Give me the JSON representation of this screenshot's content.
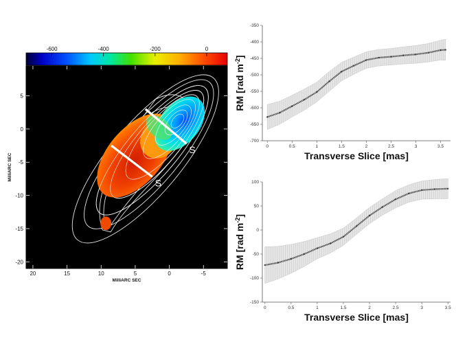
{
  "chart_data": [
    {
      "type": "heatmap",
      "colorbar": {
        "ticks": [
          -600,
          -400,
          -200,
          0
        ],
        "range": [
          -700,
          80
        ]
      },
      "xlabel": "MilliARC SEC",
      "ylabel": "MilliARC SEC",
      "xticks": [
        20,
        15,
        10,
        5,
        0,
        -5
      ],
      "yticks": [
        5,
        0,
        -5,
        -10,
        -15,
        -20
      ],
      "xlim": [
        21,
        -8.5
      ],
      "ylim": [
        -21,
        9.5
      ],
      "slice_label": "S",
      "slices": [
        {
          "name": "S",
          "from": [
            8.5,
            -2.5
          ],
          "to": [
            2.5,
            -7.2
          ]
        },
        {
          "name": "S",
          "from": [
            3.5,
            3.0
          ],
          "to": [
            -2.5,
            -2.2
          ]
        }
      ],
      "features": {
        "red_knot_center": [
          9.3,
          -14.2
        ],
        "red_region_center": [
          5.0,
          -4.0
        ],
        "cyan_core_center": [
          -1.5,
          0.8
        ]
      },
      "grid": false
    },
    {
      "type": "line",
      "xlabel": "Transverse Slice [mas]",
      "ylabel": "RM [rad m",
      "ylabel_sup": "-2",
      "ylabel_close": "]",
      "xlim": [
        -0.1,
        3.7
      ],
      "ylim": [
        -700,
        -350
      ],
      "xticks": [
        0,
        0.5,
        1,
        1.5,
        2,
        2.5,
        3,
        3.5
      ],
      "yticks": [
        -350,
        -400,
        -450,
        -500,
        -550,
        -600,
        -650,
        -700
      ],
      "x": [
        0,
        0.25,
        0.5,
        0.75,
        1.0,
        1.25,
        1.5,
        1.75,
        2.0,
        2.25,
        2.5,
        2.75,
        3.0,
        3.25,
        3.5,
        3.6
      ],
      "y": [
        -628,
        -615,
        -595,
        -575,
        -552,
        -520,
        -490,
        -472,
        -455,
        -448,
        -445,
        -441,
        -438,
        -433,
        -425,
        -424
      ],
      "err": [
        38,
        35,
        33,
        32,
        30,
        30,
        28,
        26,
        25,
        25,
        25,
        26,
        27,
        28,
        30,
        32
      ],
      "grid": false
    },
    {
      "type": "line",
      "xlabel": "Transverse Slice [mas]",
      "ylabel": "RM [rad m",
      "ylabel_sup": "-2",
      "ylabel_close": "]",
      "xlim": [
        -0.05,
        3.55
      ],
      "ylim": [
        -150,
        100
      ],
      "xticks": [
        0,
        0.5,
        1,
        1.5,
        2,
        2.5,
        3,
        3.5
      ],
      "yticks": [
        100,
        50,
        0,
        -50,
        -100,
        -150
      ],
      "x": [
        0,
        0.25,
        0.5,
        0.75,
        1.0,
        1.25,
        1.5,
        1.75,
        2.0,
        2.25,
        2.5,
        2.75,
        3.0,
        3.25,
        3.5
      ],
      "y": [
        -73,
        -68,
        -60,
        -50,
        -38,
        -28,
        -14,
        8,
        30,
        48,
        64,
        76,
        83,
        85,
        86
      ],
      "err": [
        38,
        34,
        30,
        26,
        22,
        20,
        18,
        17,
        17,
        17,
        18,
        18,
        19,
        20,
        21
      ],
      "grid": false
    }
  ]
}
